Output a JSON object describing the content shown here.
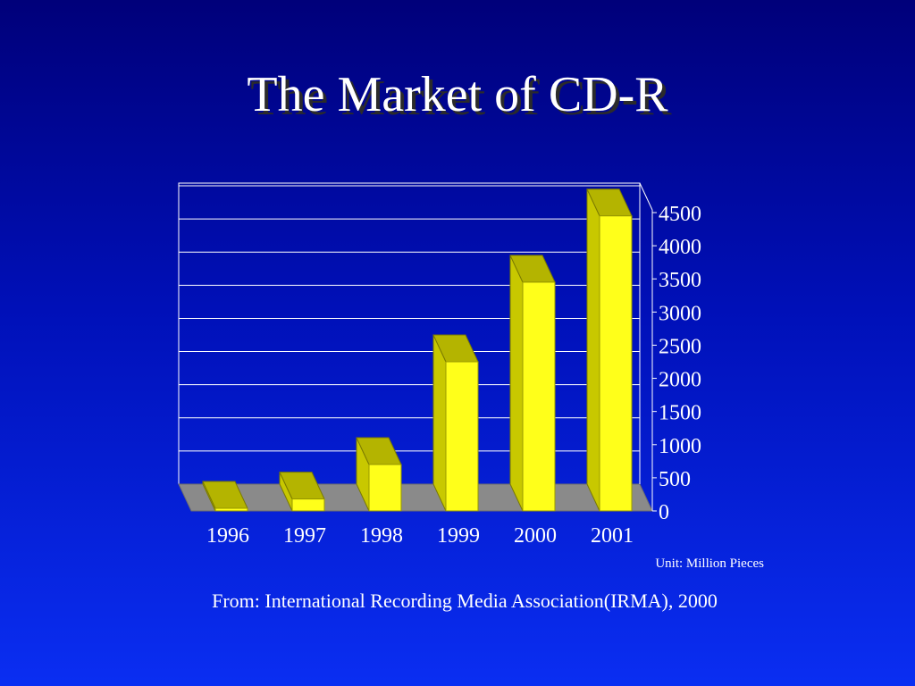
{
  "slide": {
    "title": "The Market of CD-R",
    "unit_note": "Unit: Million Pieces",
    "source": "From: International Recording Media Association(IRMA), 2000"
  },
  "chart_data": {
    "type": "bar",
    "style": "3d",
    "title": "",
    "xlabel": "",
    "ylabel": "",
    "categories": [
      "1996",
      "1997",
      "1998",
      "1999",
      "2000",
      "2001"
    ],
    "values": [
      40,
      180,
      700,
      2250,
      3450,
      4450
    ],
    "ylim": [
      0,
      4500
    ],
    "yticks": [
      0,
      500,
      1000,
      1500,
      2000,
      2500,
      3000,
      3500,
      4000,
      4500
    ],
    "grid": true,
    "y_axis_side": "right",
    "colors": {
      "bar_front": "#ffff1a",
      "bar_side": "#c8c800",
      "bar_top": "#b4b400",
      "floor": "#8a8a8a",
      "grid": "#ffffff"
    }
  }
}
